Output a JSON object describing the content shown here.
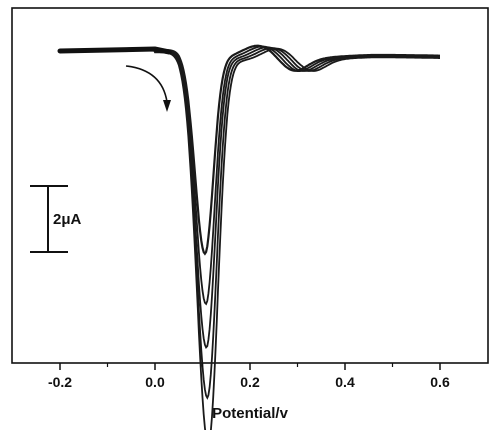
{
  "chart_data": {
    "type": "line",
    "xlabel": "Potential/v",
    "ylabel": "",
    "xlim": [
      -0.3,
      0.72
    ],
    "xticks": [
      "-0.2",
      "0.0",
      "0.2",
      "0.4",
      "0.6"
    ],
    "grid": false,
    "legend": "none",
    "scale_bar": {
      "label": "2μA",
      "value_uA": 2
    },
    "annotation": "curved arrow indicating direction of increasing peak current",
    "series": [
      {
        "peak_x": 0.105,
        "depth_uA": 6.0,
        "shoulder_x": 0.22
      },
      {
        "peak_x": 0.107,
        "depth_uA": 7.5,
        "shoulder_x": 0.23
      },
      {
        "peak_x": 0.108,
        "depth_uA": 8.8,
        "shoulder_x": 0.24
      },
      {
        "peak_x": 0.11,
        "depth_uA": 10.3,
        "shoulder_x": 0.25
      },
      {
        "peak_x": 0.112,
        "depth_uA": 11.7,
        "shoulder_x": 0.26
      }
    ]
  }
}
